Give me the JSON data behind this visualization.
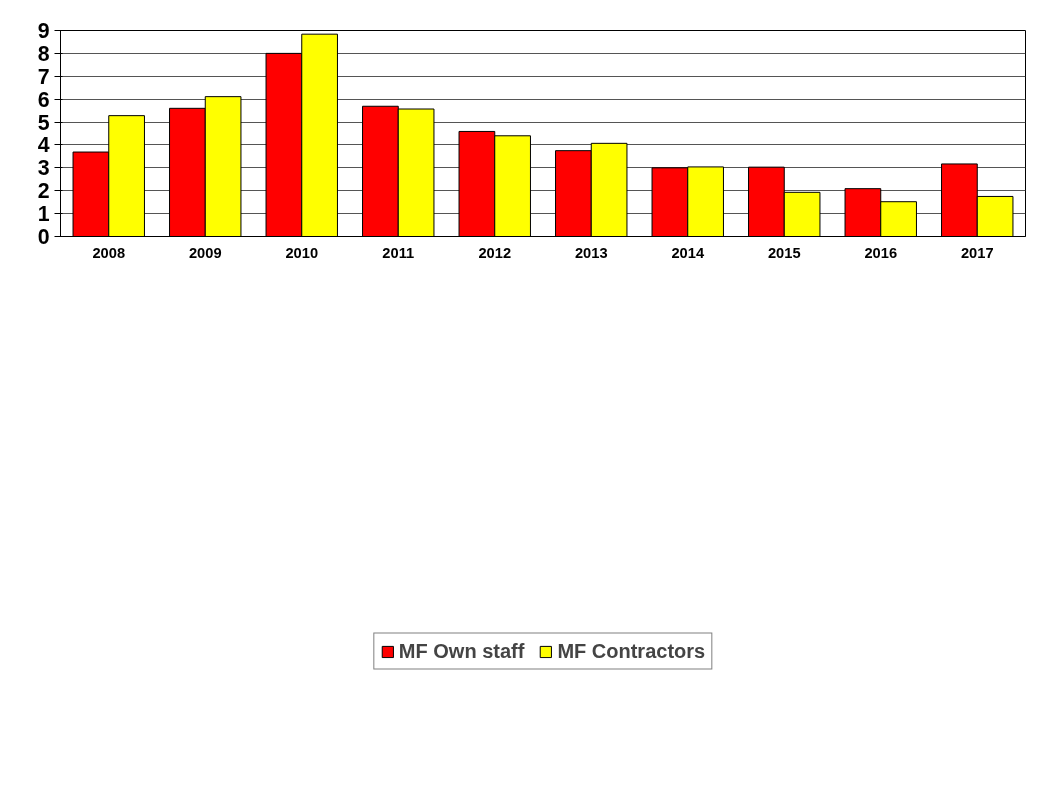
{
  "chart_data": {
    "type": "bar",
    "categories": [
      "2008",
      "2009",
      "2010",
      "2011",
      "2012",
      "2013",
      "2014",
      "2015",
      "2016",
      "2017"
    ],
    "series": [
      {
        "name": "MF Own staff",
        "color": "#ff0000",
        "values": [
          3.69,
          5.6,
          8.0,
          5.69,
          4.59,
          3.75,
          3.0,
          3.03,
          2.09,
          3.17
        ]
      },
      {
        "name": "MF Contractors",
        "color": "#ffff00",
        "values": [
          5.28,
          6.11,
          8.84,
          5.57,
          4.4,
          4.07,
          3.04,
          1.93,
          1.52,
          1.75
        ]
      }
    ],
    "ylim": [
      0,
      9
    ],
    "yticks": [
      0,
      1,
      2,
      3,
      4,
      5,
      6,
      7,
      8,
      9
    ],
    "grid": "y",
    "legend": "bottom"
  }
}
